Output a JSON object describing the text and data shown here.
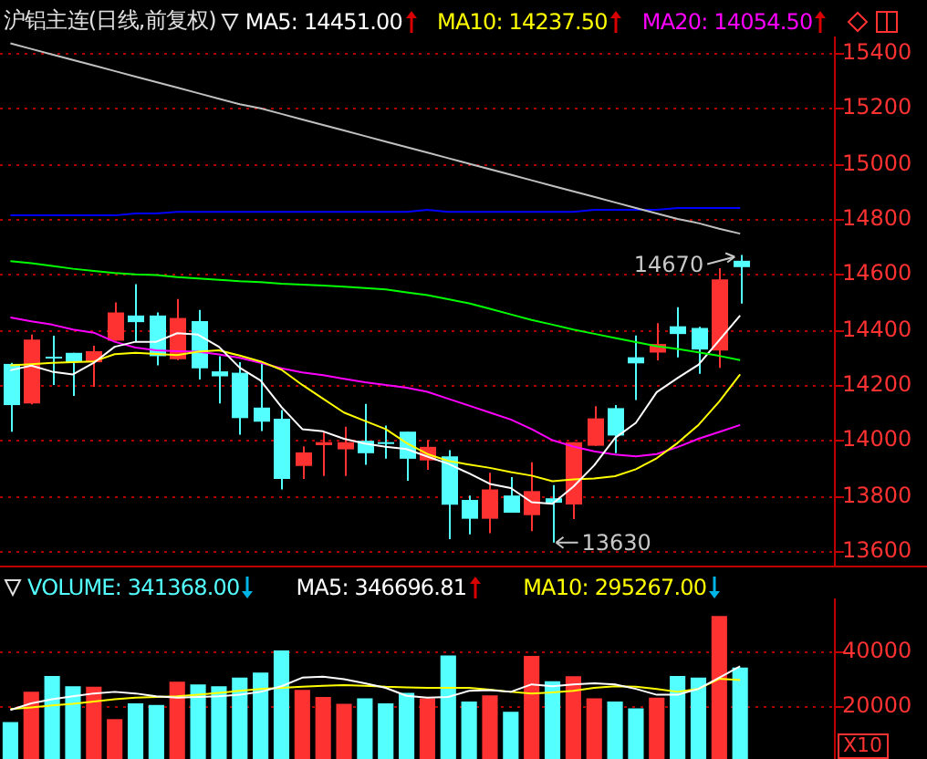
{
  "chart_data": [
    {
      "type": "candlestick",
      "title": "沪铝主连(日线,前复权)",
      "legend": "top",
      "grid": "y",
      "categories": [
        null,
        null,
        null,
        null,
        null,
        null,
        null,
        null,
        null,
        null,
        null,
        null,
        null,
        null,
        null,
        null,
        null,
        null,
        null,
        null,
        null,
        null,
        null,
        null,
        null,
        null,
        null,
        null,
        null,
        null,
        null,
        null,
        null,
        null,
        null,
        null
      ],
      "ohlc": [
        [
          14276,
          14280,
          14031,
          14127
        ],
        [
          14133,
          14382,
          14130,
          14364
        ],
        [
          14302,
          14378,
          14200,
          14298
        ],
        [
          14316,
          14316,
          14160,
          14282
        ],
        [
          14282,
          14342,
          14193,
          14322
        ],
        [
          14360,
          14498,
          14360,
          14462
        ],
        [
          14451,
          14564,
          14356,
          14427
        ],
        [
          14451,
          14462,
          14271,
          14304
        ],
        [
          14293,
          14511,
          14290,
          14442
        ],
        [
          14431,
          14471,
          14220,
          14260
        ],
        [
          14249,
          14304,
          14133,
          14231
        ],
        [
          14244,
          14282,
          14020,
          14080
        ],
        [
          14118,
          14276,
          14033,
          14067
        ],
        [
          14078,
          14109,
          13822,
          13860
        ],
        [
          13907,
          13978,
          13860,
          13956
        ],
        [
          13982,
          14031,
          13871,
          13993
        ],
        [
          13967,
          14049,
          13871,
          13993
        ],
        [
          13998,
          14131,
          13911,
          13953
        ],
        [
          13993,
          14053,
          13933,
          13987
        ],
        [
          14031,
          14031,
          13853,
          13933
        ],
        [
          13927,
          14000,
          13893,
          13976
        ],
        [
          13942,
          13964,
          13642,
          13767
        ],
        [
          13784,
          13800,
          13660,
          13716
        ],
        [
          13716,
          13882,
          13664,
          13822
        ],
        [
          13800,
          13867,
          13738,
          13738
        ],
        [
          13729,
          13920,
          13671,
          13816
        ],
        [
          13790,
          13838,
          13630,
          13774
        ],
        [
          13768,
          13993,
          13715,
          13993
        ],
        [
          13980,
          14123,
          13980,
          14079
        ],
        [
          14116,
          14127,
          13953,
          14017
        ],
        [
          14300,
          14379,
          14145,
          14278
        ],
        [
          14317,
          14423,
          14289,
          14348
        ],
        [
          14412,
          14481,
          14300,
          14384
        ],
        [
          14406,
          14410,
          14240,
          14328
        ],
        [
          14324,
          14622,
          14262,
          14582
        ],
        [
          14649,
          14670,
          14494,
          14626
        ]
      ],
      "colors": [
        "#54ffff",
        "#ff3232",
        "#54ffff",
        "#54ffff",
        "#ff3232",
        "#ff3232",
        "#54ffff",
        "#54ffff",
        "#ff3232",
        "#54ffff",
        "#54ffff",
        "#54ffff",
        "#54ffff",
        "#54ffff",
        "#ff3232",
        "#ff3232",
        "#ff3232",
        "#54ffff",
        "#54ffff",
        "#54ffff",
        "#ff3232",
        "#54ffff",
        "#54ffff",
        "#ff3232",
        "#54ffff",
        "#ff3232",
        "#54ffff",
        "#ff3232",
        "#ff3232",
        "#54ffff",
        "#54ffff",
        "#ff3232",
        "#54ffff",
        "#54ffff",
        "#ff3232",
        "#54ffff"
      ],
      "series": [
        {
          "type": "line",
          "color": "#c0c0c0",
          "values": [
            15435,
            15415,
            15395,
            15375,
            15355,
            15335,
            15315,
            15295,
            15275,
            15255,
            15235,
            15215,
            15200,
            15180,
            15160,
            15140,
            15120,
            15100,
            15080,
            15060,
            15040,
            15020,
            15000,
            14980,
            14960,
            14940,
            14920,
            14900,
            14880,
            14860,
            14840,
            14820,
            14800,
            14785,
            14765,
            14747
          ]
        },
        {
          "type": "line",
          "color": "#0000ff",
          "values": [
            14813,
            14813,
            14813,
            14813,
            14813,
            14813,
            14820,
            14820,
            14826,
            14826,
            14826,
            14826,
            14826,
            14826,
            14826,
            14826,
            14826,
            14826,
            14826,
            14826,
            14833,
            14826,
            14826,
            14826,
            14826,
            14826,
            14826,
            14826,
            14833,
            14833,
            14833,
            14833,
            14840,
            14840,
            14840,
            14840
          ]
        },
        {
          "type": "line",
          "color": "#00ff00",
          "values": [
            14648,
            14640,
            14630,
            14620,
            14612,
            14605,
            14600,
            14597,
            14590,
            14585,
            14580,
            14575,
            14572,
            14566,
            14563,
            14559,
            14555,
            14550,
            14545,
            14535,
            14525,
            14510,
            14495,
            14475,
            14455,
            14435,
            14418,
            14400,
            14385,
            14370,
            14355,
            14340,
            14330,
            14318,
            14305,
            14290
          ]
        },
        {
          "type": "line",
          "name": "MA5: 14451.00",
          "color": "#ffffff",
          "values": [
            14253,
            14270,
            14248,
            14238,
            14280,
            14338,
            14356,
            14356,
            14387,
            14382,
            14338,
            14262,
            14216,
            14120,
            14040,
            14032,
            14005,
            13988,
            13976,
            13968,
            13941,
            13915,
            13880,
            13842,
            13827,
            13776,
            13770,
            13832,
            13909,
            14008,
            14063,
            14174,
            14225,
            14273,
            14362,
            14451
          ]
        },
        {
          "type": "line",
          "name": "MA10: 14237.50",
          "color": "#ffff00",
          "values": [
            14271,
            14275,
            14280,
            14282,
            14285,
            14311,
            14316,
            14312,
            14308,
            14320,
            14325,
            14306,
            14285,
            14255,
            14200,
            14150,
            14100,
            14070,
            14040,
            13990,
            13950,
            13925,
            13912,
            13900,
            13885,
            13872,
            13852,
            13858,
            13862,
            13870,
            13895,
            13935,
            13990,
            14055,
            14140,
            14238
          ]
        },
        {
          "type": "line",
          "name": "MA20: 14054.50",
          "color": "#ff00ff",
          "values": [
            14444,
            14430,
            14418,
            14400,
            14389,
            14356,
            14335,
            14325,
            14322,
            14320,
            14310,
            14298,
            14280,
            14260,
            14245,
            14235,
            14222,
            14210,
            14200,
            14190,
            14175,
            14150,
            14125,
            14100,
            14075,
            14040,
            14000,
            13977,
            13960,
            13948,
            13942,
            13950,
            13975,
            14005,
            14030,
            14055
          ]
        }
      ],
      "ylim": [
        13540,
        15460
      ],
      "yticks": [
        13600,
        13800,
        14000,
        14200,
        14400,
        14600,
        14800,
        15000,
        15200,
        15400
      ],
      "annotations": [
        "14670",
        "13630"
      ]
    },
    {
      "type": "bar",
      "legend": "top",
      "grid": "y",
      "categories": [
        null,
        null,
        null,
        null,
        null,
        null,
        null,
        null,
        null,
        null,
        null,
        null,
        null,
        null,
        null,
        null,
        null,
        null,
        null,
        null,
        null,
        null,
        null,
        null,
        null,
        null,
        null,
        null,
        null,
        null,
        null,
        null,
        null,
        null,
        null,
        null
      ],
      "series": [
        {
          "name": "VOLUME: 341368.00",
          "colors": [
            "#54ffff",
            "#ff3232",
            "#54ffff",
            "#54ffff",
            "#ff3232",
            "#ff3232",
            "#54ffff",
            "#54ffff",
            "#ff3232",
            "#54ffff",
            "#54ffff",
            "#54ffff",
            "#54ffff",
            "#54ffff",
            "#ff3232",
            "#ff3232",
            "#ff3232",
            "#54ffff",
            "#54ffff",
            "#54ffff",
            "#ff3232",
            "#54ffff",
            "#54ffff",
            "#ff3232",
            "#54ffff",
            "#ff3232",
            "#54ffff",
            "#ff3232",
            "#ff3232",
            "#54ffff",
            "#54ffff",
            "#ff3232",
            "#54ffff",
            "#54ffff",
            "#ff3232",
            "#54ffff"
          ],
          "values": [
            13800,
            25100,
            31000,
            27200,
            27000,
            14900,
            20800,
            20200,
            28900,
            27900,
            27200,
            30400,
            32300,
            40600,
            25800,
            23200,
            20600,
            22700,
            20800,
            24700,
            22700,
            38700,
            21500,
            23800,
            17600,
            38500,
            29100,
            30900,
            22700,
            21500,
            18900,
            22900,
            31000,
            30400,
            53400,
            34140
          ]
        },
        {
          "type": "line",
          "name": "MA5: 346696.81",
          "color": "#ffffff",
          "values": [
            18300,
            20800,
            22300,
            23400,
            24500,
            25100,
            24500,
            23400,
            22900,
            23200,
            23400,
            24000,
            25100,
            27200,
            30400,
            30800,
            29800,
            28300,
            26600,
            23600,
            22900,
            23200,
            25500,
            25700,
            25100,
            27900,
            27200,
            27900,
            28300,
            27900,
            26200,
            24000,
            24000,
            26200,
            30400,
            34670
          ]
        },
        {
          "type": "line",
          "name": "MA10: 295267.00",
          "color": "#ffff00",
          "values": [
            18700,
            19300,
            20000,
            20600,
            21500,
            22300,
            22900,
            23200,
            23400,
            24000,
            24700,
            25500,
            26200,
            26600,
            27000,
            27400,
            27600,
            27400,
            27000,
            26800,
            26600,
            26600,
            26600,
            25900,
            25100,
            24500,
            24900,
            25500,
            26600,
            27200,
            27000,
            26200,
            25100,
            26200,
            30000,
            29530
          ]
        }
      ],
      "ylim": [
        0,
        60000
      ],
      "yticks": [
        20000,
        40000
      ],
      "annotations": [
        "X10"
      ]
    }
  ]
}
